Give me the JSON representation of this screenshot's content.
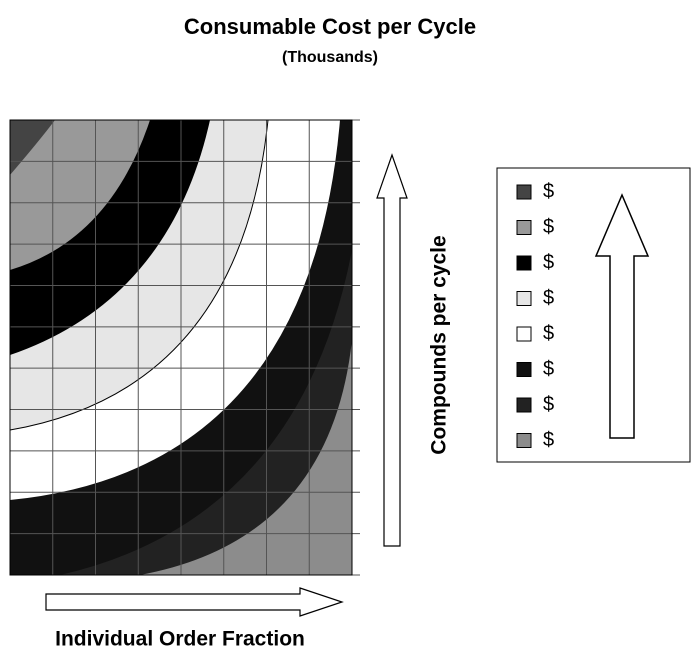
{
  "chart_data": {
    "type": "contour",
    "title": "Consumable Cost per Cycle",
    "subtitle": "(Thousands)",
    "x_label": "Individual Order Fraction",
    "y_label": "Compounds per cycle",
    "series": [
      {
        "name": "$",
        "color": "#444444"
      },
      {
        "name": "$",
        "color": "#999999"
      },
      {
        "name": "$",
        "color": "#000000"
      },
      {
        "name": "$",
        "color": "#e6e6e6"
      },
      {
        "name": "$",
        "color": "#ffffff"
      },
      {
        "name": "$",
        "color": "#111111"
      },
      {
        "name": "$",
        "color": "#222222"
      },
      {
        "name": "$",
        "color": "#8c8c8c"
      }
    ],
    "grid": true
  }
}
